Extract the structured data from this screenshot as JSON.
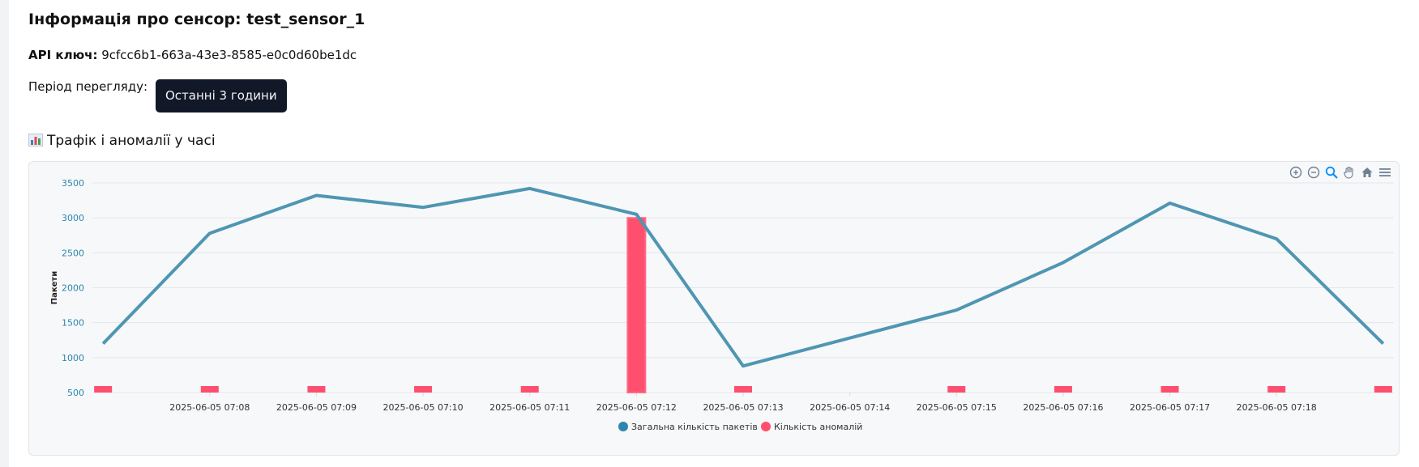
{
  "header": {
    "title": "Інформація про сенсор: test_sensor_1",
    "api_key_label": "API ключ:",
    "api_key_value": "9cfcc6b1-663a-43e3-8585-e0c0d60be1dc",
    "period_label": "Період перегляду:",
    "period_selected": "Останні 3 години"
  },
  "section": {
    "title": "Трафік і аномалії у часі",
    "icon": "bar-chart-icon"
  },
  "toolbar": {
    "icons": [
      "zoom-in-icon",
      "zoom-out-icon",
      "zoom-select-icon",
      "pan-hand-icon",
      "home-reset-icon",
      "menu-icon"
    ]
  },
  "colors": {
    "line": "#4f96b2",
    "bars": "#ff4f6e",
    "legend_line": "#2e86ab",
    "axis_text": "#2e86ab"
  },
  "chart_data": {
    "type": "line",
    "ylabel": "Пакети",
    "xlabel": "",
    "ylim": [
      500,
      3500
    ],
    "yticks": [
      500,
      1000,
      1500,
      2000,
      2500,
      3000,
      3500
    ],
    "x_tick_labels": [
      "2025-06-05 07:08",
      "2025-06-05 07:09",
      "2025-06-05 07:10",
      "2025-06-05 07:11",
      "2025-06-05 07:12",
      "2025-06-05 07:13",
      "2025-06-05 07:14",
      "2025-06-05 07:15",
      "2025-06-05 07:16",
      "2025-06-05 07:17",
      "2025-06-05 07:18"
    ],
    "x_range": [
      "2025-06-05 07:07",
      "2025-06-05 07:19"
    ],
    "grid": true,
    "legend_position": "bottom-center",
    "series": [
      {
        "name": "Загальна кількість пакетів",
        "type": "line",
        "x": [
          "2025-06-05 07:07",
          "2025-06-05 07:08",
          "2025-06-05 07:09",
          "2025-06-05 07:10",
          "2025-06-05 07:11",
          "2025-06-05 07:12",
          "2025-06-05 07:13",
          "2025-06-05 07:15",
          "2025-06-05 07:16",
          "2025-06-05 07:17",
          "2025-06-05 07:18",
          "2025-06-05 07:19"
        ],
        "values": [
          1200,
          2780,
          3320,
          3150,
          3420,
          3050,
          880,
          1680,
          2360,
          3210,
          2700,
          1200
        ]
      },
      {
        "name": "Кількість аномалій",
        "type": "bar",
        "x": [
          "2025-06-05 07:07",
          "2025-06-05 07:08",
          "2025-06-05 07:09",
          "2025-06-05 07:10",
          "2025-06-05 07:11",
          "2025-06-05 07:12",
          "2025-06-05 07:13",
          "2025-06-05 07:15",
          "2025-06-05 07:16",
          "2025-06-05 07:17",
          "2025-06-05 07:18",
          "2025-06-05 07:19"
        ],
        "values": [
          0,
          0,
          0,
          0,
          0,
          2500,
          0,
          0,
          0,
          0,
          0,
          0
        ]
      }
    ]
  }
}
